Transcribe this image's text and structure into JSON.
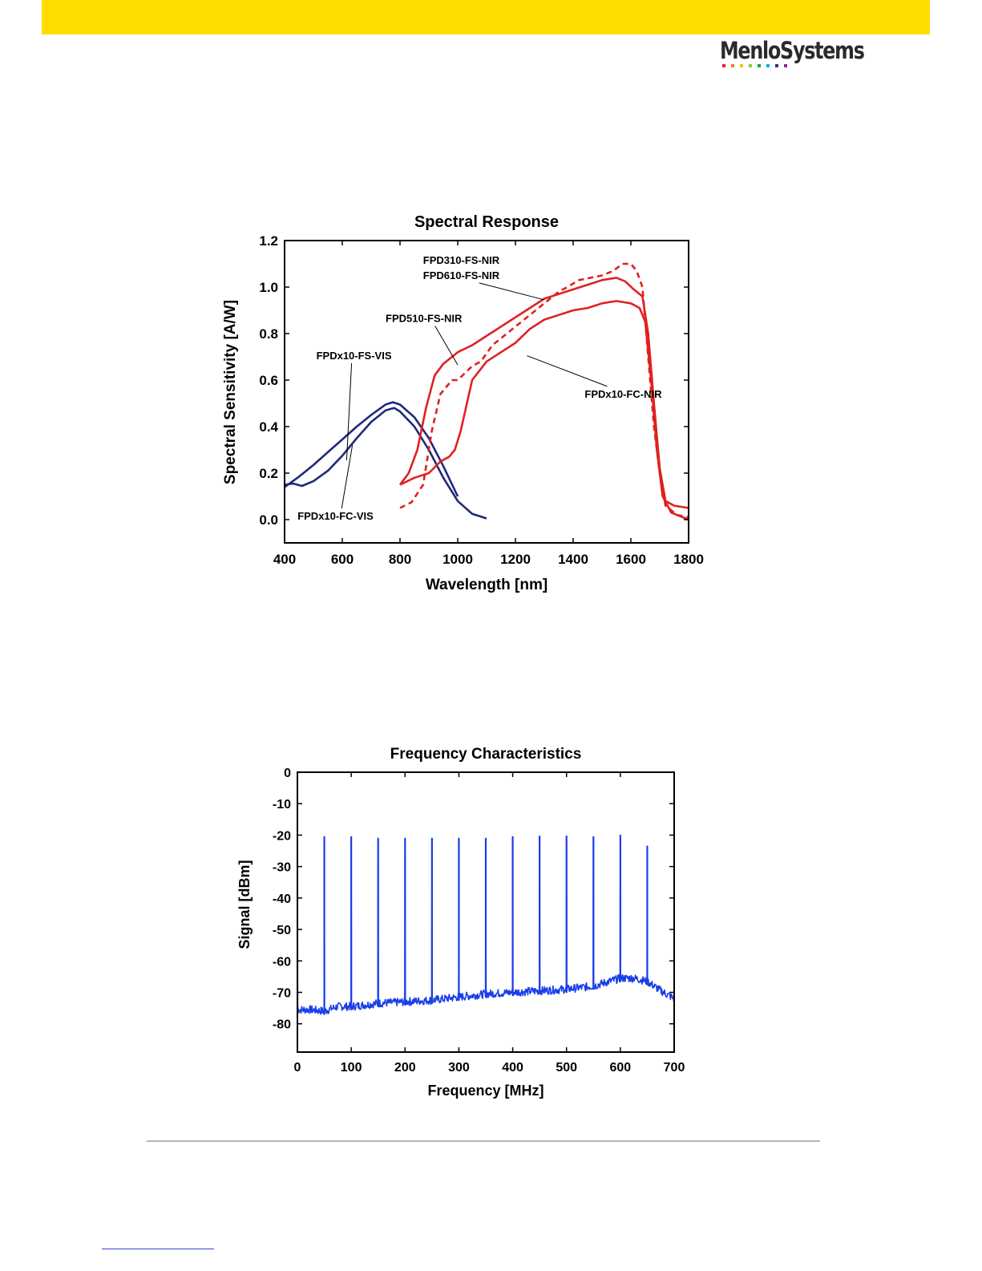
{
  "header": {
    "brand_text": "MenloSystems",
    "accent_color": "#FFDD00",
    "logo_dot_colors": [
      "#e5202e",
      "#f07d1c",
      "#f6c200",
      "#8dc63f",
      "#00a651",
      "#00aeef",
      "#2e3192",
      "#92278f"
    ]
  },
  "chart_data": [
    {
      "type": "line",
      "title": "Spectral Response",
      "xlabel": "Wavelength [nm]",
      "ylabel": "Spectral Sensitivity [A/W]",
      "xlim": [
        400,
        1800
      ],
      "ylim": [
        -0.1,
        1.2
      ],
      "xticks": [
        400,
        600,
        800,
        1000,
        1200,
        1400,
        1600,
        1800
      ],
      "yticks": [
        0.0,
        0.2,
        0.4,
        0.6,
        0.8,
        1.0,
        1.2
      ],
      "xtick_labels": [
        "400",
        "600",
        "800",
        "1000",
        "1200",
        "1400",
        "1600",
        "1800"
      ],
      "ytick_labels": [
        "0.0",
        "0.2",
        "0.4",
        "0.6",
        "0.8",
        "1.0",
        "1.2"
      ],
      "grid": false,
      "series": [
        {
          "name": "FPDx10-FS-VIS",
          "color": "#1f2a7a",
          "dash": "solid",
          "x": [
            400,
            450,
            500,
            550,
            600,
            650,
            700,
            750,
            775,
            800,
            850,
            900,
            950,
            1000
          ],
          "y": [
            0.14,
            0.185,
            0.235,
            0.29,
            0.345,
            0.4,
            0.45,
            0.495,
            0.505,
            0.495,
            0.44,
            0.35,
            0.23,
            0.1
          ]
        },
        {
          "name": "FPDx10-FC-VIS",
          "color": "#1f2a7a",
          "dash": "solid",
          "x": [
            400,
            430,
            460,
            500,
            550,
            600,
            650,
            700,
            750,
            780,
            800,
            850,
            900,
            950,
            1000,
            1050,
            1100
          ],
          "y": [
            0.15,
            0.155,
            0.145,
            0.165,
            0.21,
            0.275,
            0.35,
            0.42,
            0.47,
            0.48,
            0.465,
            0.4,
            0.3,
            0.18,
            0.08,
            0.025,
            0.005
          ]
        },
        {
          "name": "FPD310-FS-NIR / FPD610-FS-NIR",
          "color": "#e02020",
          "dash": "solid",
          "x": [
            800,
            830,
            860,
            890,
            920,
            950,
            1000,
            1050,
            1100,
            1150,
            1200,
            1250,
            1300,
            1350,
            1400,
            1450,
            1500,
            1550,
            1580,
            1610,
            1640,
            1660,
            1680,
            1700,
            1720,
            1750,
            1800
          ],
          "y": [
            0.15,
            0.2,
            0.3,
            0.48,
            0.62,
            0.67,
            0.72,
            0.75,
            0.79,
            0.83,
            0.87,
            0.91,
            0.95,
            0.97,
            0.99,
            1.01,
            1.03,
            1.04,
            1.025,
            0.99,
            0.96,
            0.8,
            0.5,
            0.22,
            0.08,
            0.06,
            0.05
          ]
        },
        {
          "name": "FPD510-FS-NIR",
          "color": "#e02020",
          "dash": "dashed",
          "x": [
            800,
            840,
            880,
            910,
            940,
            980,
            1000,
            1050,
            1080,
            1120,
            1180,
            1250,
            1300,
            1350,
            1380,
            1420,
            1460,
            1500,
            1540,
            1570,
            1600,
            1620,
            1640,
            1660,
            1680,
            1700,
            1720,
            1760,
            1800
          ],
          "y": [
            0.05,
            0.075,
            0.15,
            0.38,
            0.54,
            0.6,
            0.6,
            0.66,
            0.68,
            0.75,
            0.81,
            0.88,
            0.93,
            0.98,
            1.0,
            1.03,
            1.04,
            1.05,
            1.07,
            1.1,
            1.1,
            1.07,
            1.0,
            0.7,
            0.4,
            0.2,
            0.06,
            0.02,
            0.01
          ]
        },
        {
          "name": "FPDx10-FC-NIR",
          "color": "#e02020",
          "dash": "solid",
          "x": [
            800,
            850,
            900,
            940,
            970,
            990,
            1010,
            1050,
            1100,
            1150,
            1200,
            1250,
            1300,
            1350,
            1400,
            1450,
            1500,
            1550,
            1600,
            1630,
            1650,
            1670,
            1690,
            1710,
            1740,
            1800
          ],
          "y": [
            0.15,
            0.18,
            0.2,
            0.25,
            0.27,
            0.3,
            0.38,
            0.6,
            0.68,
            0.72,
            0.76,
            0.82,
            0.86,
            0.88,
            0.9,
            0.91,
            0.93,
            0.94,
            0.93,
            0.91,
            0.85,
            0.6,
            0.3,
            0.1,
            0.03,
            0.0
          ]
        }
      ],
      "annotations": [
        {
          "text": "FPD310-FS-NIR",
          "x": 880,
          "y": 1.1,
          "arrow_to": null
        },
        {
          "text": "FPD610-FS-NIR",
          "x": 880,
          "y": 1.035,
          "arrow_to": [
            1300,
            0.945
          ]
        },
        {
          "text": "FPD510-FS-NIR",
          "x": 750,
          "y": 0.85,
          "arrow_to": [
            1000,
            0.665
          ]
        },
        {
          "text": "FPDx10-FS-VIS",
          "x": 510,
          "y": 0.69,
          "arrow_to": [
            615,
            0.255
          ]
        },
        {
          "text": "FPDx10-FC-VIS",
          "x": 445,
          "y": 0.0,
          "arrow_to": [
            635,
            0.32
          ]
        },
        {
          "text": "FPDx10-FC-NIR",
          "x": 1440,
          "y": 0.525,
          "arrow_to": [
            1240,
            0.705
          ]
        }
      ]
    },
    {
      "type": "line",
      "title": "Frequency Characteristics",
      "xlabel": "Frequency [MHz]",
      "ylabel": "Signal [dBm]",
      "xlim": [
        0,
        700
      ],
      "ylim": [
        -89,
        0
      ],
      "xticks": [
        0,
        100,
        200,
        300,
        400,
        500,
        600,
        700
      ],
      "yticks": [
        0,
        -10,
        -20,
        -30,
        -40,
        -50,
        -60,
        -70,
        -80
      ],
      "xtick_labels": [
        "0",
        "100",
        "200",
        "300",
        "400",
        "500",
        "600",
        "700"
      ],
      "ytick_labels": [
        "0",
        "-10",
        "-20",
        "-30",
        "-40",
        "-50",
        "-60",
        "-70",
        "-80"
      ],
      "grid": false,
      "series": [
        {
          "name": "",
          "color": "#1a3ee8",
          "noise_floor": {
            "x": [
              0,
              25,
              50,
              75,
              100,
              150,
              200,
              250,
              300,
              350,
              400,
              450,
              500,
              550,
              580,
              600,
              625,
              650,
              675,
              700
            ],
            "y": [
              -75.5,
              -75.5,
              -76,
              -74.5,
              -74.5,
              -73.5,
              -73,
              -72.5,
              -71.5,
              -70.5,
              -70,
              -69.5,
              -69,
              -68,
              -66.5,
              -65.5,
              -65.5,
              -66.5,
              -69.5,
              -72
            ]
          },
          "peaks": {
            "x": [
              50,
              100,
              150,
              200,
              250,
              300,
              350,
              400,
              450,
              500,
              550,
              600,
              650
            ],
            "y": [
              -20.5,
              -20.5,
              -21,
              -21,
              -21,
              -21,
              -21,
              -20.5,
              -20.3,
              -20.3,
              -20.5,
              -20,
              -23.5
            ]
          }
        }
      ]
    }
  ]
}
